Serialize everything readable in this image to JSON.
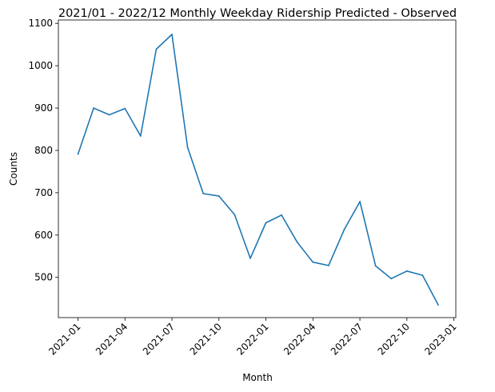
{
  "chart_data": {
    "type": "line",
    "title": "2021/01 - 2022/12 Monthly Weekday Ridership Predicted - Observed",
    "xlabel": "Month",
    "ylabel": "Counts",
    "ylim": [
      405,
      1108
    ],
    "x_ticks": [
      "2021-01",
      "2021-04",
      "2021-07",
      "2021-10",
      "2022-01",
      "2022-04",
      "2022-07",
      "2022-10",
      "2023-01"
    ],
    "y_ticks": [
      500,
      600,
      700,
      800,
      900,
      1000,
      1100
    ],
    "series": [
      {
        "name": "Predicted - Observed",
        "color": "#1f77b4",
        "x": [
          "2021-01",
          "2021-02",
          "2021-03",
          "2021-04",
          "2021-05",
          "2021-06",
          "2021-07",
          "2021-08",
          "2021-09",
          "2021-10",
          "2021-11",
          "2021-12",
          "2022-01",
          "2022-02",
          "2022-03",
          "2022-04",
          "2022-05",
          "2022-06",
          "2022-07",
          "2022-08",
          "2022-09",
          "2022-10",
          "2022-11",
          "2022-12"
        ],
        "values": [
          791,
          900,
          884,
          899,
          834,
          1039,
          1074,
          807,
          698,
          692,
          648,
          545,
          629,
          647,
          583,
          536,
          528,
          613,
          679,
          527,
          497,
          515,
          505,
          435
        ]
      }
    ]
  }
}
